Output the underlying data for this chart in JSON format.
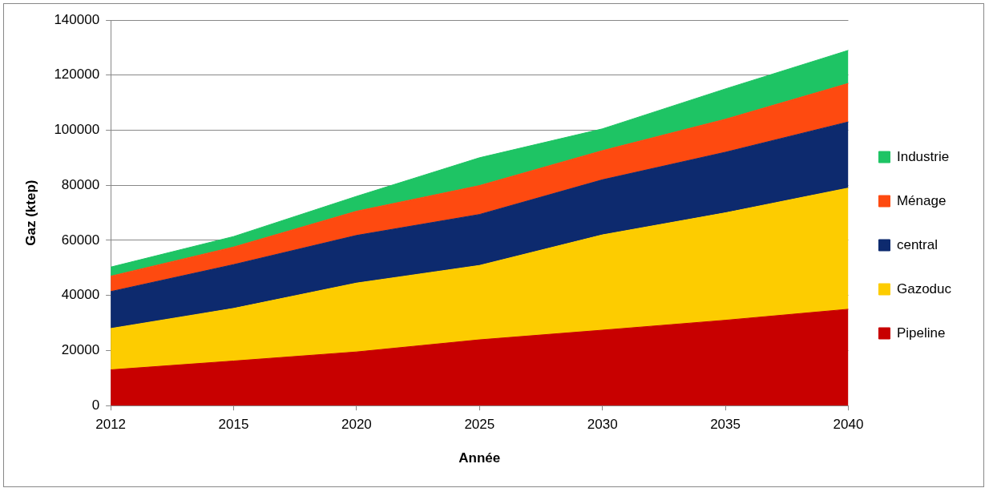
{
  "chart_data": {
    "type": "area",
    "stacked": true,
    "xlabel": "Année",
    "ylabel": "Gaz (ktep)",
    "categories": [
      "2012",
      "2015",
      "2020",
      "2025",
      "2030",
      "2035",
      "2040"
    ],
    "series": [
      {
        "name": "Pipeline",
        "color": "#c80000",
        "values": [
          13000,
          16200,
          19500,
          23900,
          27400,
          31000,
          35000
        ]
      },
      {
        "name": "Gazoduc",
        "color": "#fdcc00",
        "values": [
          15000,
          19100,
          25000,
          27000,
          34600,
          39000,
          44000
        ]
      },
      {
        "name": "central",
        "color": "#0d2a6e",
        "values": [
          13400,
          15900,
          17300,
          18500,
          20000,
          22000,
          24000
        ]
      },
      {
        "name": "Ménage",
        "color": "#fe4a10",
        "values": [
          5600,
          6400,
          8800,
          10500,
          10600,
          12000,
          14000
        ]
      },
      {
        "name": "Industrie",
        "color": "#1ec464",
        "values": [
          3300,
          3800,
          5400,
          10100,
          7900,
          11000,
          12000
        ]
      }
    ],
    "ylim": [
      0,
      140000
    ],
    "yticks": [
      0,
      20000,
      40000,
      60000,
      80000,
      100000,
      120000,
      140000
    ],
    "grid": "y",
    "legend": "right"
  }
}
